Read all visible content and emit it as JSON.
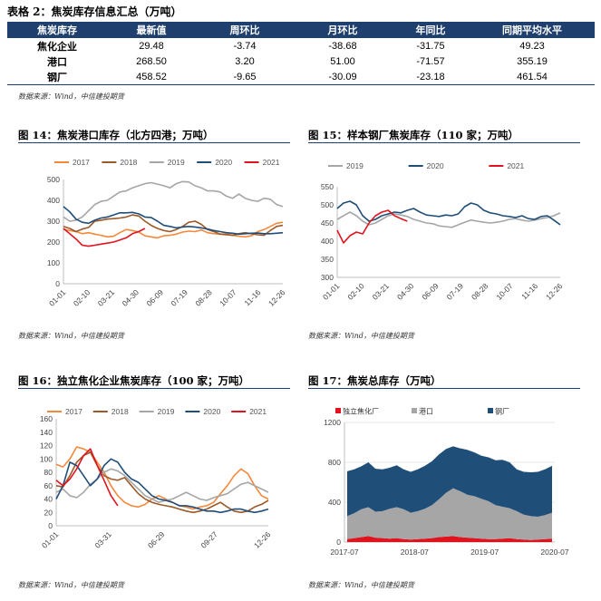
{
  "table": {
    "title": "表格 2：焦炭库存信息汇总（万吨）",
    "headers": [
      "焦炭库存",
      "最新值",
      "周环比",
      "月环比",
      "年同比",
      "同期平均水平"
    ],
    "rows": [
      [
        "焦化企业",
        "29.48",
        "-3.74",
        "-38.68",
        "-31.75",
        "49.23"
      ],
      [
        "港口",
        "268.50",
        "3.20",
        "51.00",
        "-71.57",
        "355.19"
      ],
      [
        "钢厂",
        "458.52",
        "-9.65",
        "-30.09",
        "-23.18",
        "461.54"
      ]
    ],
    "source": "数据来源：Wind，中信建投期货"
  },
  "source_text": "数据来源：Wind，中信建投期货",
  "colors": {
    "2017": "#f4883c",
    "2018": "#9b5a2a",
    "2019": "#a6a6a6",
    "2020": "#1f4e79",
    "2021": "#e0141e",
    "独立焦化厂": "#e0141e",
    "港口": "#a6a6a6",
    "钢厂": "#1f4e79"
  },
  "chart_data": [
    {
      "id": "fig14",
      "type": "line",
      "title": "图 14：焦炭港口库存（北方四港；万吨）",
      "x_ticks": [
        "01-01",
        "02-10",
        "03-21",
        "04-30",
        "06-09",
        "07-19",
        "08-28",
        "10-07",
        "11-16",
        "12-26"
      ],
      "ylim": [
        0,
        500
      ],
      "y_ticks": [
        0,
        100,
        200,
        300,
        400,
        500
      ],
      "series": [
        {
          "name": "2017",
          "values": [
            260,
            255,
            250,
            240,
            245,
            238,
            232,
            225,
            228,
            245,
            260,
            255,
            248,
            230,
            225,
            220,
            230,
            232,
            238,
            248,
            252,
            250,
            258,
            245,
            240,
            238,
            240,
            232,
            228,
            225,
            230,
            250,
            260,
            275,
            290,
            295
          ]
        },
        {
          "name": "2018",
          "values": [
            275,
            265,
            250,
            262,
            270,
            300,
            305,
            310,
            312,
            315,
            320,
            330,
            325,
            300,
            280,
            265,
            255,
            250,
            260,
            275,
            295,
            300,
            285,
            260,
            250,
            238,
            235,
            232,
            240,
            245,
            240,
            235,
            232,
            255,
            275,
            280
          ]
        },
        {
          "name": "2019",
          "values": [
            320,
            300,
            305,
            320,
            350,
            380,
            395,
            400,
            420,
            440,
            445,
            460,
            470,
            480,
            485,
            478,
            470,
            460,
            480,
            490,
            488,
            470,
            460,
            445,
            445,
            440,
            420,
            410,
            430,
            410,
            400,
            395,
            410,
            405,
            380,
            370
          ]
        },
        {
          "name": "2020",
          "values": [
            370,
            345,
            310,
            295,
            290,
            305,
            315,
            320,
            330,
            340,
            340,
            342,
            335,
            320,
            318,
            300,
            280,
            275,
            268,
            272,
            275,
            272,
            268,
            262,
            255,
            250,
            245,
            242,
            238,
            240,
            242,
            243,
            240,
            240,
            242,
            245
          ]
        },
        {
          "name": "2021",
          "values": [
            265,
            240,
            215,
            185,
            180,
            185,
            190,
            195,
            200,
            210,
            220,
            240,
            250,
            265
          ]
        }
      ]
    },
    {
      "id": "fig15",
      "type": "line",
      "title": "图 15：样本钢厂焦炭库存（110 家；万吨）",
      "x_ticks": [
        "01-01",
        "02-10",
        "03-21",
        "04-30",
        "06-09",
        "07-19",
        "08-28",
        "10-07",
        "11-16",
        "12-26"
      ],
      "ylim": [
        300,
        550
      ],
      "y_ticks": [
        300,
        350,
        400,
        450,
        500,
        550
      ],
      "series": [
        {
          "name": "2019",
          "values": [
            460,
            470,
            480,
            470,
            455,
            445,
            450,
            460,
            470,
            475,
            472,
            468,
            460,
            455,
            450,
            448,
            442,
            440,
            438,
            445,
            452,
            458,
            455,
            452,
            450,
            452,
            455,
            460,
            462,
            458,
            455,
            458,
            462,
            465,
            470,
            478
          ]
        },
        {
          "name": "2020",
          "values": [
            490,
            505,
            510,
            500,
            470,
            455,
            460,
            470,
            475,
            480,
            478,
            485,
            490,
            480,
            472,
            470,
            468,
            472,
            470,
            475,
            495,
            505,
            500,
            485,
            478,
            475,
            470,
            468,
            465,
            470,
            462,
            460,
            468,
            470,
            458,
            445
          ]
        },
        {
          "name": "2021",
          "values": [
            430,
            395,
            415,
            425,
            420,
            450,
            470,
            480,
            485,
            470,
            462,
            455
          ]
        }
      ]
    },
    {
      "id": "fig16",
      "type": "line",
      "title": "图 16：独立焦化企业焦炭库存（100 家；万吨）",
      "x_ticks": [
        "01-01",
        "03-31",
        "06-29",
        "09-27",
        "12-26"
      ],
      "ylim": [
        0,
        160
      ],
      "y_ticks": [
        0,
        20,
        40,
        60,
        80,
        100,
        120,
        140,
        160
      ],
      "series": [
        {
          "name": "2017",
          "values": [
            92,
            88,
            100,
            118,
            115,
            110,
            95,
            80,
            60,
            45,
            35,
            30,
            28,
            32,
            40,
            45,
            40,
            35,
            30,
            28,
            25,
            28,
            30,
            35,
            48,
            60,
            75,
            85,
            78,
            60,
            45,
            40
          ]
        },
        {
          "name": "2018",
          "values": [
            60,
            58,
            75,
            95,
            105,
            110,
            90,
            75,
            70,
            68,
            72,
            60,
            48,
            40,
            35,
            32,
            30,
            28,
            25,
            22,
            20,
            22,
            25,
            30,
            35,
            28,
            22,
            20,
            22,
            28,
            32,
            38
          ]
        },
        {
          "name": "2019",
          "values": [
            50,
            55,
            45,
            42,
            50,
            62,
            70,
            80,
            85,
            82,
            75,
            65,
            55,
            45,
            40,
            35,
            38,
            40,
            45,
            50,
            45,
            40,
            38,
            42,
            45,
            48,
            55,
            62,
            65,
            60,
            55,
            50
          ]
        },
        {
          "name": "2020",
          "values": [
            40,
            60,
            95,
            90,
            75,
            60,
            70,
            90,
            100,
            95,
            80,
            70,
            65,
            55,
            45,
            40,
            38,
            35,
            30,
            30,
            28,
            25,
            22,
            22,
            20,
            22,
            25,
            25,
            22,
            20,
            22,
            25
          ]
        },
        {
          "name": "2021",
          "values": [
            68,
            60,
            70,
            85,
            105,
            115,
            90,
            68,
            45,
            30
          ]
        }
      ]
    },
    {
      "id": "fig17",
      "type": "area",
      "title": "图 17：焦炭总库存（万吨）",
      "x_ticks": [
        "2017-07",
        "2018-07",
        "2019-07",
        "2020-07"
      ],
      "ylim": [
        0,
        1200
      ],
      "y_ticks": [
        0,
        400,
        800,
        1200
      ],
      "series": [
        {
          "name": "独立焦化厂",
          "values": [
            30,
            40,
            50,
            60,
            45,
            40,
            35,
            40,
            30,
            25,
            30,
            35,
            40,
            50,
            55,
            60,
            50,
            45,
            40,
            35,
            30,
            30,
            35,
            40,
            30,
            25,
            20,
            25,
            30,
            35
          ]
        },
        {
          "name": "港口",
          "values": [
            230,
            250,
            280,
            290,
            260,
            270,
            300,
            310,
            300,
            270,
            280,
            300,
            330,
            380,
            440,
            480,
            460,
            430,
            420,
            400,
            380,
            340,
            320,
            300,
            280,
            250,
            240,
            230,
            240,
            260
          ]
        },
        {
          "name": "钢厂",
          "values": [
            450,
            440,
            430,
            450,
            430,
            420,
            410,
            420,
            400,
            410,
            420,
            430,
            440,
            450,
            440,
            420,
            430,
            450,
            440,
            430,
            440,
            450,
            470,
            460,
            420,
            430,
            440,
            450,
            460,
            470
          ]
        }
      ]
    }
  ]
}
